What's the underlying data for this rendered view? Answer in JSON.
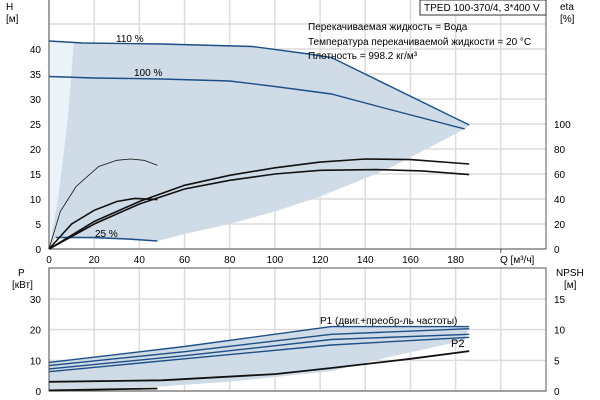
{
  "chart_data": [
    {
      "type": "line",
      "title": "TPED 100-370/4, 3*400 V",
      "info": [
        "Перекачиваемая жидкость = Вода",
        "Температура перекачиваемой жидкости = 20 °C",
        "Плотность = 998.2 кг/м³"
      ],
      "ylabel": "H",
      "yunit": "[м]",
      "y2label": "eta",
      "y2unit": "[%]",
      "xlabel": "Q [м³/ч]",
      "xlim": [
        0,
        210
      ],
      "ylim": [
        0,
        45
      ],
      "y2lim": [
        0,
        112.5
      ],
      "xticks": [
        0,
        20,
        40,
        60,
        80,
        100,
        120,
        140,
        160,
        180
      ],
      "yticks": [
        0,
        5,
        10,
        15,
        20,
        25,
        30,
        35,
        40
      ],
      "y2ticks": [
        0,
        20,
        40,
        60,
        80,
        100
      ],
      "curve_labels": [
        "110 %",
        "100 %",
        "25 %"
      ],
      "head_series": [
        {
          "name": "110 %",
          "points": [
            [
              0,
              41.6
            ],
            [
              15,
              41.2
            ],
            [
              50,
              41
            ],
            [
              90,
              40.5
            ],
            [
              115,
              39
            ],
            [
              125,
              38.3
            ],
            [
              186,
              24.8
            ]
          ]
        },
        {
          "name": "100 %",
          "points": [
            [
              0,
              34.5
            ],
            [
              20,
              34.2
            ],
            [
              50,
              34
            ],
            [
              80,
              33.6
            ],
            [
              100,
              32.5
            ],
            [
              125,
              31
            ],
            [
              150,
              28
            ],
            [
              184,
              24
            ]
          ]
        },
        {
          "name": "25 %",
          "points": [
            [
              3,
              2.3
            ],
            [
              20,
              2.3
            ],
            [
              35,
              2
            ],
            [
              48,
              1.6
            ]
          ]
        }
      ],
      "eta_series": [
        {
          "name": "eta 25% thin",
          "points": [
            [
              0,
              0
            ],
            [
              5,
              30
            ],
            [
              12,
              50
            ],
            [
              22,
              66
            ],
            [
              30,
              71
            ],
            [
              36,
              72
            ],
            [
              42,
              71
            ],
            [
              48,
              67
            ]
          ]
        },
        {
          "name": "eta short",
          "points": [
            [
              0,
              0
            ],
            [
              10,
              20
            ],
            [
              20,
              31
            ],
            [
              30,
              38
            ],
            [
              38,
              40.5
            ],
            [
              48,
              39.5
            ]
          ]
        },
        {
          "name": "eta 110%",
          "points": [
            [
              0,
              0
            ],
            [
              20,
              22
            ],
            [
              40,
              38
            ],
            [
              60,
              51
            ],
            [
              80,
              59
            ],
            [
              100,
              65
            ],
            [
              120,
              69.5
            ],
            [
              140,
              72
            ],
            [
              160,
              71.5
            ],
            [
              186,
              68
            ]
          ]
        },
        {
          "name": "eta 100%",
          "points": [
            [
              0,
              0
            ],
            [
              20,
              20
            ],
            [
              40,
              36
            ],
            [
              60,
              48
            ],
            [
              80,
              55
            ],
            [
              100,
              60
            ],
            [
              120,
              63
            ],
            [
              145,
              63.5
            ],
            [
              165,
              62.5
            ],
            [
              186,
              59.5
            ]
          ]
        }
      ],
      "shaded_area": [
        [
          0,
          0
        ],
        [
          4,
          10
        ],
        [
          8,
          25
        ],
        [
          11,
          41.3
        ],
        [
          50,
          41
        ],
        [
          90,
          40.5
        ],
        [
          125,
          38.3
        ],
        [
          186,
          24.8
        ],
        [
          184,
          24
        ],
        [
          150,
          16
        ],
        [
          120,
          10.5
        ],
        [
          100,
          7.5
        ],
        [
          80,
          5
        ],
        [
          60,
          3
        ],
        [
          48,
          1.6
        ],
        [
          3,
          2.3
        ]
      ],
      "light_area": [
        [
          0,
          0
        ],
        [
          0,
          41.6
        ],
        [
          11,
          41.3
        ],
        [
          8,
          25
        ],
        [
          4,
          10
        ]
      ]
    },
    {
      "type": "line",
      "ylabel": "P",
      "yunit": "[кВт]",
      "y2label": "NPSH",
      "y2unit": "[м]",
      "ylim": [
        0,
        40
      ],
      "y2lim": [
        0,
        20
      ],
      "yticks": [
        0,
        10,
        20,
        30
      ],
      "y2ticks": [
        0,
        5,
        10,
        15
      ],
      "labels": [
        "P1 (двиг.+преобр-ль частоты)",
        "P2"
      ],
      "p1_series": [
        {
          "name": "P1 110%",
          "points": [
            [
              0,
              9.3
            ],
            [
              60,
              14.5
            ],
            [
              125,
              21
            ],
            [
              186,
              21
            ]
          ]
        },
        {
          "name": "P1 100%",
          "points": [
            [
              0,
              8.3
            ],
            [
              60,
              12.8
            ],
            [
              125,
              18.5
            ],
            [
              186,
              20.3
            ]
          ]
        },
        {
          "name": "P2 110%",
          "points": [
            [
              0,
              7.2
            ],
            [
              60,
              11.5
            ],
            [
              125,
              16.8
            ],
            [
              186,
              18.5
            ]
          ]
        },
        {
          "name": "P2 100%",
          "points": [
            [
              0,
              6.3
            ],
            [
              60,
              10.5
            ],
            [
              125,
              15
            ],
            [
              186,
              17.5
            ]
          ]
        }
      ],
      "npsh_series": [
        {
          "name": "NPSH",
          "points": [
            [
              0,
              3
            ],
            [
              50,
              3.5
            ],
            [
              100,
              5.5
            ],
            [
              125,
              7.5
            ],
            [
              160,
              10.5
            ],
            [
              186,
              13
            ]
          ]
        },
        {
          "name": "NPSH 25%",
          "points": [
            [
              0,
              0.2
            ],
            [
              48,
              0.8
            ]
          ]
        }
      ],
      "shaded_area": [
        [
          0,
          9.5
        ],
        [
          60,
          14.5
        ],
        [
          125,
          21
        ],
        [
          186,
          21
        ],
        [
          184,
          16.5
        ],
        [
          150,
          11
        ],
        [
          125,
          6.5
        ],
        [
          80,
          3
        ],
        [
          50,
          1.5
        ],
        [
          20,
          0.6
        ],
        [
          0,
          0.3
        ]
      ]
    }
  ]
}
